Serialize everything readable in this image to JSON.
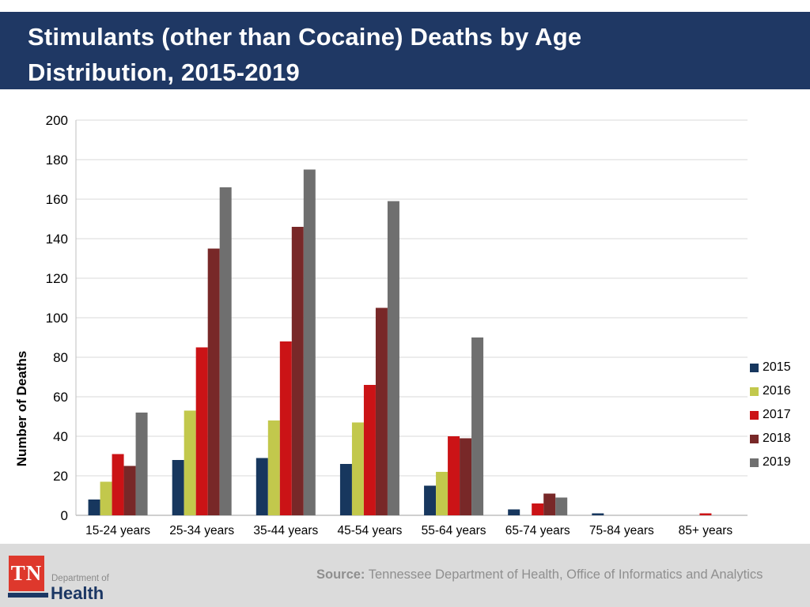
{
  "header": {
    "title_line1": "Stimulants (other than Cocaine) Deaths by Age",
    "title_line2": "Distribution, 2015-2019",
    "banner_color": "#1F3864"
  },
  "chart_data": {
    "type": "bar",
    "title": "Stimulants (other than Cocaine) Deaths by Age Distribution, 2015-2019",
    "xlabel": "",
    "ylabel": "Number of Deaths",
    "ylim": [
      0,
      200
    ],
    "ystep": 20,
    "grid": true,
    "legend_position": "right",
    "categories": [
      "15-24 years",
      "25-34 years",
      "35-44 years",
      "45-54 years",
      "55-64 years",
      "65-74 years",
      "75-84 years",
      "85+ years"
    ],
    "series": [
      {
        "name": "2015",
        "color": "#17375E",
        "values": [
          8,
          28,
          29,
          26,
          15,
          3,
          1,
          0
        ]
      },
      {
        "name": "2016",
        "color": "#C2C84C",
        "values": [
          17,
          53,
          48,
          47,
          22,
          0,
          0,
          0
        ]
      },
      {
        "name": "2017",
        "color": "#CB1316",
        "values": [
          31,
          85,
          88,
          66,
          40,
          6,
          0,
          1
        ]
      },
      {
        "name": "2018",
        "color": "#782828",
        "values": [
          25,
          135,
          146,
          105,
          39,
          11,
          0,
          0
        ]
      },
      {
        "name": "2019",
        "color": "#6F6F6F",
        "values": [
          52,
          166,
          175,
          159,
          90,
          9,
          0,
          0
        ]
      }
    ],
    "gridline_color": "#D9D9D9",
    "axis_color": "#BFBFBF"
  },
  "footer": {
    "logo": {
      "tn": "TN",
      "dept": "Department of",
      "health": "Health",
      "red": "#DE382C",
      "navy": "#1B3764"
    },
    "source_label": "Source:",
    "source_text": " Tennessee Department of Health, Office of Informatics and Analytics"
  }
}
